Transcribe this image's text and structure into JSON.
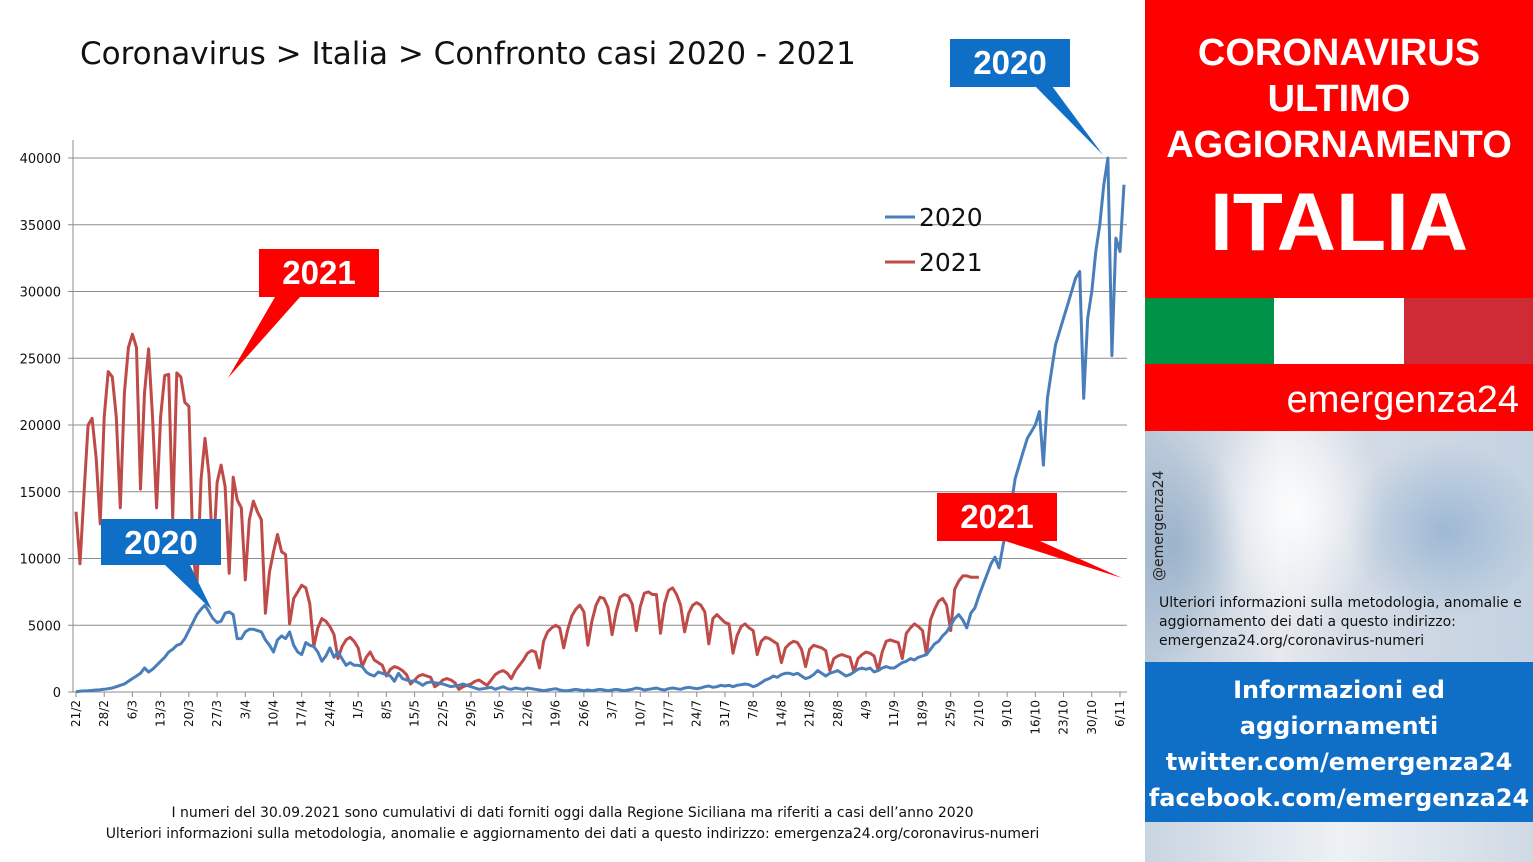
{
  "title": "Coronavirus > Italia > Confronto casi 2020 - 2021",
  "callouts": {
    "blue_top": "2020",
    "blue_mid": "2020",
    "red_left": "2021",
    "red_right": "2021"
  },
  "footnote": {
    "line1": "I numeri del 30.09.2021 sono cumulativi di dati forniti oggi dalla Regione Siciliana ma riferiti a casi dell’anno 2020",
    "line2": "Ulteriori informazioni sulla metodologia, anomalie e aggiornamento dei dati a questo indirizzo: emergenza24.org/coronavirus-numeri"
  },
  "sidebar": {
    "banner_line1": "CORONAVIRUS",
    "banner_line2": "ULTIMO",
    "banner_line3": "AGGIORNAMENTO",
    "country": "ITALIA",
    "brand": "emergenza24",
    "handle": "@emergenza24",
    "info_text": "Ulteriori informazioni sulla metodologia, anomalie e aggiornamento dei dati a questo indirizzo: emergenza24.org/coronavirus-numeri",
    "social_line1": "Informazioni ed",
    "social_line2": "aggiornamenti",
    "social_line3": "twitter.com/emergenza24",
    "social_line4": "facebook.com/emergenza24",
    "flag_colors": [
      "#009246",
      "#ffffff",
      "#ce2b37"
    ]
  },
  "colors": {
    "series_2020": "#4a7ebb",
    "series_2021": "#be4b48",
    "callout_blue": "#0f6fc6",
    "callout_red": "#ff0000",
    "banner_red": "#ff0000"
  },
  "chart_data": {
    "type": "line",
    "title": "Coronavirus > Italia > Confronto casi 2020 - 2021",
    "x_tick_labels": [
      "21/2",
      "28/2",
      "6/3",
      "13/3",
      "20/3",
      "27/3",
      "3/4",
      "10/4",
      "17/4",
      "24/4",
      "1/5",
      "8/5",
      "15/5",
      "22/5",
      "29/5",
      "5/6",
      "12/6",
      "19/6",
      "26/6",
      "3/7",
      "10/7",
      "17/7",
      "24/7",
      "31/7",
      "7/8",
      "14/8",
      "21/8",
      "28/8",
      "4/9",
      "11/9",
      "18/9",
      "25/9",
      "2/10",
      "9/10",
      "16/10",
      "23/10",
      "30/10",
      "6/11"
    ],
    "y_ticks": [
      0,
      5000,
      10000,
      15000,
      20000,
      25000,
      30000,
      35000,
      40000
    ],
    "ylim": [
      0,
      40000
    ],
    "grid": true,
    "legend_position": "top-right",
    "series": [
      {
        "name": "2020",
        "color": "#4a7ebb",
        "values": [
          20,
          60,
          80,
          100,
          120,
          150,
          170,
          200,
          250,
          300,
          400,
          500,
          600,
          800,
          1000,
          1200,
          1400,
          1800,
          1500,
          1700,
          2000,
          2300,
          2600,
          3000,
          3200,
          3500,
          3600,
          4000,
          4600,
          5200,
          5800,
          6200,
          6500,
          6000,
          5500,
          5200,
          5300,
          5900,
          6000,
          5800,
          4000,
          4000,
          4500,
          4700,
          4700,
          4600,
          4500,
          3900,
          3500,
          3000,
          3900,
          4200,
          4000,
          4500,
          3500,
          3000,
          2800,
          3700,
          3500,
          3400,
          3000,
          2300,
          2700,
          3300,
          2600,
          3000,
          2500,
          2000,
          2200,
          2000,
          2000,
          1900,
          1500,
          1300,
          1200,
          1500,
          1400,
          1300,
          1200,
          800,
          1400,
          1000,
          900,
          800,
          850,
          700,
          500,
          700,
          750,
          700,
          650,
          600,
          500,
          400,
          450,
          500,
          600,
          500,
          400,
          300,
          200,
          250,
          300,
          350,
          200,
          300,
          400,
          250,
          200,
          300,
          250,
          200,
          300,
          250,
          200,
          150,
          100,
          150,
          200,
          250,
          150,
          100,
          100,
          150,
          200,
          150,
          100,
          150,
          100,
          150,
          200,
          150,
          100,
          150,
          200,
          150,
          100,
          150,
          200,
          300,
          250,
          150,
          200,
          250,
          300,
          200,
          150,
          250,
          300,
          250,
          200,
          300,
          350,
          300,
          250,
          300,
          400,
          450,
          350,
          400,
          500,
          450,
          500,
          400,
          500,
          550,
          600,
          550,
          400,
          500,
          700,
          900,
          1000,
          1200,
          1100,
          1300,
          1400,
          1400,
          1300,
          1400,
          1200,
          1000,
          1100,
          1300,
          1600,
          1400,
          1200,
          1400,
          1500,
          1600,
          1400,
          1200,
          1300,
          1500,
          1700,
          1800,
          1700,
          1800,
          1500,
          1600,
          1800,
          1900,
          1800,
          1800,
          2000,
          2200,
          2300,
          2500,
          2400,
          2600,
          2700,
          2800,
          3200,
          3600,
          3800,
          4200,
          4500,
          5000,
          5500,
          5800,
          5400,
          4800,
          5900,
          6300,
          7200,
          8000,
          8800,
          9600,
          10100,
          9300,
          11000,
          12500,
          14000,
          16000,
          17000,
          18000,
          19000,
          19500,
          20000,
          21000,
          17000,
          22000,
          24000,
          26000,
          27000,
          28000,
          29000,
          30000,
          31000,
          31500,
          22000,
          28000,
          30000,
          33000,
          35000,
          38000,
          40000,
          25200,
          34000,
          33000,
          38000
        ],
        "note_values_approximate": "Values are estimates read off the plotted line; the last point in the sequence corresponds to the final date in the plot."
      },
      {
        "name": "2021",
        "color": "#be4b48",
        "values": [
          13500,
          9600,
          15000,
          20000,
          20500,
          17500,
          12600,
          20600,
          24000,
          23600,
          20600,
          13800,
          22400,
          25800,
          26800,
          25800,
          15200,
          22400,
          25700,
          20500,
          13800,
          20600,
          23700,
          23800,
          13000,
          23900,
          23600,
          21700,
          21400,
          10600,
          7800,
          15900,
          19000,
          16300,
          9800,
          15700,
          17000,
          15400,
          8900,
          16100,
          14400,
          13800,
          8400,
          12900,
          14300,
          13500,
          12900,
          5900,
          9000,
          10500,
          11800,
          10500,
          10300,
          5100,
          7000,
          7500,
          8000,
          7800,
          6600,
          3400,
          4800,
          5500,
          5300,
          4900,
          4300,
          2500,
          3400,
          3900,
          4100,
          3800,
          3300,
          1900,
          2600,
          3000,
          2400,
          2200,
          2000,
          1200,
          1700,
          1900,
          1800,
          1600,
          1300,
          600,
          900,
          1200,
          1300,
          1200,
          1100,
          400,
          600,
          900,
          1000,
          900,
          700,
          200,
          400,
          500,
          600,
          800,
          900,
          700,
          500,
          900,
          1300,
          1500,
          1600,
          1400,
          1000,
          1600,
          2000,
          2400,
          2900,
          3100,
          3000,
          1800,
          3800,
          4500,
          4800,
          5000,
          4800,
          3300,
          4700,
          5700,
          6200,
          6500,
          6000,
          3500,
          5300,
          6500,
          7100,
          7000,
          6300,
          4300,
          6000,
          7100,
          7300,
          7200,
          6600,
          4600,
          6400,
          7400,
          7500,
          7300,
          7300,
          4400,
          6600,
          7600,
          7800,
          7300,
          6500,
          4500,
          5900,
          6500,
          6700,
          6500,
          6000,
          3600,
          5500,
          5800,
          5500,
          5200,
          5100,
          2900,
          4200,
          4900,
          5100,
          4800,
          4600,
          2800,
          3800,
          4100,
          4000,
          3800,
          3600,
          2200,
          3300,
          3600,
          3800,
          3700,
          3200,
          1900,
          3200,
          3500,
          3400,
          3300,
          3100,
          1600,
          2500,
          2700,
          2800,
          2700,
          2600,
          1500,
          2500,
          2800,
          3000,
          2900,
          2700,
          1600,
          3000,
          3800,
          3900,
          3800,
          3700,
          2500,
          4400,
          4800,
          5100,
          4900,
          4600,
          2800,
          5400,
          6200,
          6800,
          7000,
          6500,
          4600,
          7700,
          8300,
          8700,
          8700,
          8600,
          8600,
          8600
        ]
      }
    ],
    "legend": [
      "2020",
      "2021"
    ]
  }
}
